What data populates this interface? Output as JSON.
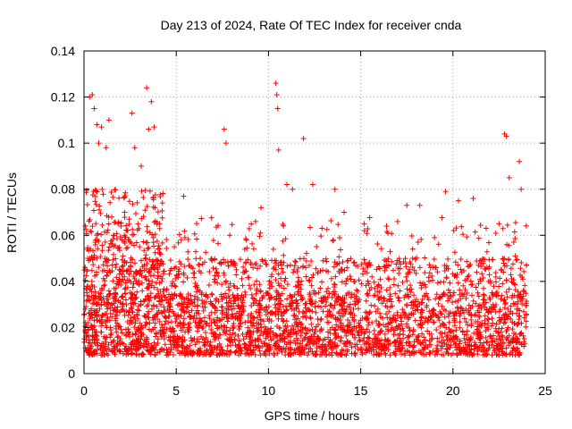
{
  "chart_data": {
    "type": "scatter",
    "title": "Day 213 of 2024, Rate Of TEC Index for receiver cnda",
    "xlabel": "GPS time / hours",
    "ylabel": "ROTI / TECUs",
    "xlim": [
      0,
      25
    ],
    "ylim": [
      0,
      0.14
    ],
    "xticks": [
      0,
      5,
      10,
      15,
      20,
      25
    ],
    "xtick_labels": [
      "0",
      "5",
      "10",
      "15",
      "20",
      "25"
    ],
    "yticks": [
      0,
      0.02,
      0.04,
      0.06,
      0.08,
      0.1,
      0.12,
      0.14
    ],
    "ytick_labels": [
      "0",
      "0.02",
      "0.04",
      "0.06",
      "0.08",
      "0.1",
      "0.12",
      "0.14"
    ],
    "grid": true,
    "marker": "plus",
    "color": "#ff0000",
    "series": [
      {
        "name": "ROTI",
        "x": [
          0.3,
          0.45,
          0.55,
          0.7,
          0.8,
          0.95,
          1.2,
          1.35,
          2.6,
          2.75,
          3.1,
          3.4,
          3.5,
          3.65,
          3.8,
          5.4,
          7.6,
          7.7,
          10.4,
          10.45,
          10.5,
          10.55,
          11.0,
          11.3,
          11.9,
          12.4,
          13.6,
          14.1,
          17.5,
          18.2,
          19.6,
          20.3,
          21.1,
          22.8,
          22.9,
          23.05,
          23.6,
          23.7,
          0.2,
          1.6,
          2.2,
          4.1,
          4.9,
          6.3,
          7.9,
          8.8,
          9.3,
          9.6,
          12.9,
          15.2,
          16.4,
          17.0,
          19.0,
          21.8,
          22.5,
          23.3
        ],
        "y": [
          0.12,
          0.121,
          0.115,
          0.108,
          0.1,
          0.107,
          0.098,
          0.11,
          0.113,
          0.098,
          0.09,
          0.124,
          0.106,
          0.118,
          0.107,
          0.077,
          0.106,
          0.1,
          0.126,
          0.121,
          0.115,
          0.097,
          0.082,
          0.08,
          0.102,
          0.082,
          0.08,
          0.07,
          0.073,
          0.073,
          0.079,
          0.075,
          0.076,
          0.104,
          0.103,
          0.085,
          0.092,
          0.08,
          0.05,
          0.06,
          0.07,
          0.065,
          0.055,
          0.05,
          0.06,
          0.058,
          0.066,
          0.072,
          0.063,
          0.062,
          0.064,
          0.066,
          0.059,
          0.063,
          0.065,
          0.057
        ]
      }
    ],
    "dense_band": {
      "x_range": [
        0,
        24
      ],
      "typical_range": [
        0.008,
        0.035
      ],
      "median": 0.018,
      "max": 0.06
    }
  }
}
